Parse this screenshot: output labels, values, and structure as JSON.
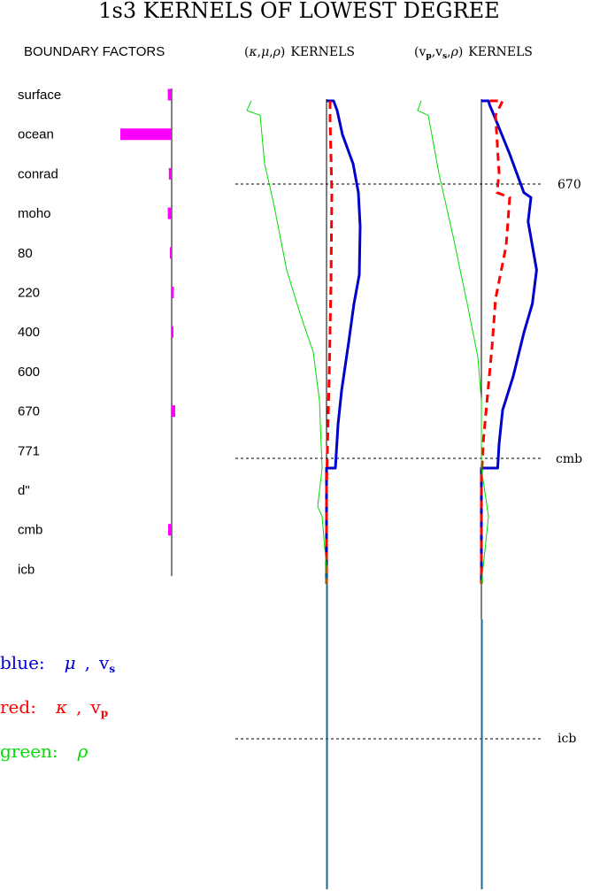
{
  "page": {
    "title": "1s3 KERNELS OF LOWEST DEGREE",
    "boundary_header": "BOUNDARY FACTORS",
    "panel_a": {
      "open": "(",
      "k": "κ",
      "c1": ",",
      "m": "μ",
      "c2": ",",
      "r": "ρ",
      "close": ")",
      "suffix": "KERNELS"
    },
    "panel_b": {
      "open": "(",
      "vp": "v",
      "p": "p",
      "c1": ",",
      "vs": "v",
      "s": "s",
      "c2": ",",
      "r": "ρ",
      "close": ")",
      "suffix": "KERNELS"
    },
    "depth_markers": {
      "d670": "670",
      "cmb": "cmb",
      "icb": "icb"
    },
    "legend": {
      "blue": {
        "label": "blue:",
        "sym": "μ",
        "comma": ",",
        "v": "v",
        "sub": "s"
      },
      "red": {
        "label": "red:",
        "sym": "κ",
        "comma": ",",
        "v": "v",
        "sub": "p"
      },
      "green": {
        "label": "green:",
        "sym": "ρ"
      }
    }
  },
  "chart_data": [
    {
      "type": "bar",
      "title": "BOUNDARY FACTORS",
      "categories": [
        "surface",
        "ocean",
        "conrad",
        "moho",
        "80",
        "220",
        "400",
        "600",
        "670",
        "771",
        "d\"",
        "cmb",
        "icb"
      ],
      "values": [
        -0.11,
        -1.45,
        -0.08,
        -0.11,
        -0.02,
        0.06,
        0.01,
        0.0,
        0.1,
        0.0,
        0.0,
        -0.1,
        0.0
      ],
      "color": "#ff00ff"
    },
    {
      "type": "line",
      "title": "(κ,μ,ρ) KERNELS",
      "y_axis": "depth, top to bottom",
      "depth_marks": [
        "670",
        "cmb",
        "icb"
      ],
      "series": [
        {
          "name": "μ",
          "color": "#0000cc",
          "style": "solid",
          "points": [
            [
              0.0,
              0.0
            ],
            [
              0.08,
              0.0
            ],
            [
              0.1,
              0.01
            ],
            [
              0.12,
              0.02
            ],
            [
              0.18,
              0.07
            ],
            [
              0.3,
              0.13
            ],
            [
              0.36,
              0.19
            ],
            [
              0.38,
              0.26
            ],
            [
              0.37,
              0.36
            ],
            [
              0.31,
              0.42
            ],
            [
              0.25,
              0.5
            ],
            [
              0.17,
              0.6
            ],
            [
              0.13,
              0.67
            ],
            [
              0.11,
              0.73
            ],
            [
              0.1,
              0.76
            ],
            [
              0.0,
              0.76
            ],
            [
              0.0,
              1.0
            ]
          ]
        },
        {
          "name": "κ",
          "color": "#ff0000",
          "style": "dashed",
          "points": [
            [
              0.04,
              0.0
            ],
            [
              0.04,
              0.04
            ],
            [
              0.06,
              0.19
            ],
            [
              0.05,
              0.38
            ],
            [
              0.03,
              0.57
            ],
            [
              0.0,
              0.8
            ],
            [
              0.0,
              1.0
            ]
          ]
        },
        {
          "name": "ρ",
          "color": "#00dd00",
          "style": "solid",
          "points": [
            [
              -0.85,
              0.0
            ],
            [
              -0.9,
              0.02
            ],
            [
              -0.75,
              0.03
            ],
            [
              -0.7,
              0.13
            ],
            [
              -0.6,
              0.21
            ],
            [
              -0.45,
              0.35
            ],
            [
              -0.3,
              0.44
            ],
            [
              -0.15,
              0.52
            ],
            [
              -0.08,
              0.62
            ],
            [
              -0.05,
              0.76
            ],
            [
              -0.1,
              0.84
            ],
            [
              -0.05,
              0.86
            ],
            [
              0.0,
              0.97
            ],
            [
              0.0,
              1.0
            ]
          ]
        }
      ]
    },
    {
      "type": "line",
      "title": "(vp,vs,ρ) KERNELS",
      "y_axis": "depth, top to bottom",
      "depth_marks": [
        "670",
        "cmb",
        "icb"
      ],
      "series": [
        {
          "name": "vs",
          "color": "#0000cc",
          "style": "solid",
          "points": [
            [
              0.0,
              0.0
            ],
            [
              0.1,
              0.0
            ],
            [
              0.12,
              0.01
            ],
            [
              0.15,
              0.02
            ],
            [
              0.4,
              0.11
            ],
            [
              0.6,
              0.19
            ],
            [
              0.7,
              0.2
            ],
            [
              0.66,
              0.25
            ],
            [
              0.78,
              0.35
            ],
            [
              0.72,
              0.42
            ],
            [
              0.6,
              0.48
            ],
            [
              0.45,
              0.57
            ],
            [
              0.3,
              0.64
            ],
            [
              0.25,
              0.71
            ],
            [
              0.23,
              0.76
            ],
            [
              0.0,
              0.76
            ],
            [
              0.0,
              1.0
            ]
          ]
        },
        {
          "name": "vp",
          "color": "#ff0000",
          "style": "dashed",
          "points": [
            [
              0.12,
              0.0
            ],
            [
              0.3,
              0.0
            ],
            [
              0.2,
              0.03
            ],
            [
              0.25,
              0.15
            ],
            [
              0.22,
              0.19
            ],
            [
              0.4,
              0.2
            ],
            [
              0.35,
              0.3
            ],
            [
              0.2,
              0.41
            ],
            [
              0.15,
              0.51
            ],
            [
              0.08,
              0.62
            ],
            [
              0.03,
              0.7
            ],
            [
              0.0,
              0.78
            ],
            [
              0.0,
              1.0
            ]
          ]
        },
        {
          "name": "ρ",
          "color": "#00dd00",
          "style": "solid",
          "points": [
            [
              -0.85,
              0.0
            ],
            [
              -0.9,
              0.02
            ],
            [
              -0.75,
              0.03
            ],
            [
              -0.6,
              0.15
            ],
            [
              -0.4,
              0.28
            ],
            [
              -0.2,
              0.42
            ],
            [
              -0.05,
              0.53
            ],
            [
              0.0,
              0.62
            ],
            [
              0.0,
              0.76
            ],
            [
              0.1,
              0.86
            ],
            [
              0.0,
              1.0
            ]
          ]
        }
      ]
    }
  ]
}
